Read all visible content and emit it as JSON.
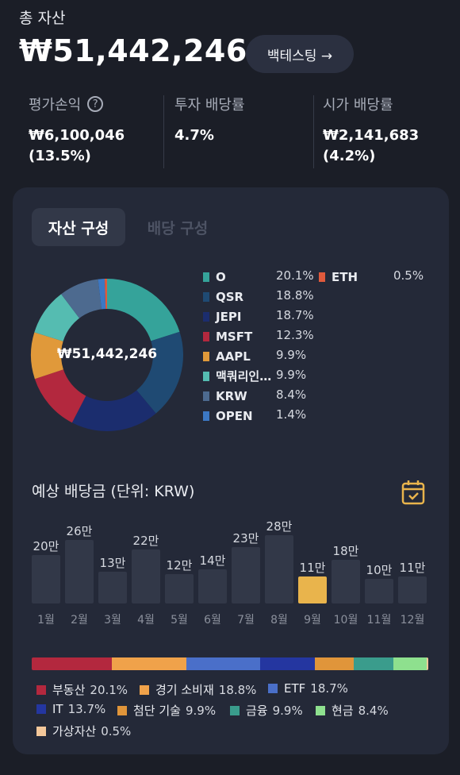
{
  "header": {
    "total_label": "총 자산",
    "total_value": "₩51,442,246",
    "backtest_label": "백테스팅 →"
  },
  "stats": [
    {
      "label": "평가손익",
      "value_line1": "₩6,100,046",
      "value_line2": "(13.5%)",
      "help_icon": "question-circle-icon"
    },
    {
      "label": "투자 배당률",
      "value_line1": "4.7%",
      "value_line2": ""
    },
    {
      "label": "시가 배당률",
      "value_line1": "₩2,141,683 (4.2%)",
      "value_line2": ""
    }
  ],
  "tabs": [
    {
      "label": "자산 구성",
      "active": true
    },
    {
      "label": "배당 구성",
      "active": false
    }
  ],
  "donut": {
    "center_label": "₩51,442,246"
  },
  "chart_data": [
    {
      "type": "pie",
      "categories": [
        "O",
        "QSR",
        "JEPI",
        "MSFT",
        "AAPL",
        "맥쿼리인…",
        "KRW",
        "OPEN",
        "ETH"
      ],
      "values": [
        20.1,
        18.8,
        18.7,
        12.3,
        9.9,
        9.9,
        8.4,
        1.4,
        0.5
      ],
      "labels": [
        "20.1%",
        "18.8%",
        "18.7%",
        "12.3%",
        "9.9%",
        "9.9%",
        "8.4%",
        "1.4%",
        "0.5%"
      ],
      "colors": [
        "#35a39a",
        "#1f4a73",
        "#1b2d6e",
        "#b3283e",
        "#e0993a",
        "#55bcb1",
        "#4d6a8f",
        "#3c78c4",
        "#e05a3c"
      ]
    },
    {
      "type": "bar",
      "title": "예상 배당금 (단위: KRW)",
      "categories": [
        "1월",
        "2월",
        "3월",
        "4월",
        "5월",
        "6월",
        "7월",
        "8월",
        "9월",
        "10월",
        "11월",
        "12월"
      ],
      "values": [
        200000,
        260000,
        130000,
        220000,
        120000,
        140000,
        230000,
        280000,
        110000,
        180000,
        100000,
        110000
      ],
      "labels": [
        "20만",
        "26만",
        "13만",
        "22만",
        "12만",
        "14만",
        "23만",
        "28만",
        "11만",
        "18만",
        "10만",
        "11만"
      ],
      "highlight_index": 8,
      "bar_color": "#323848",
      "highlight_color": "#e9b44c"
    },
    {
      "type": "bar",
      "categories": [
        "부동산",
        "경기 소비재",
        "ETF",
        "IT",
        "첨단 기술",
        "금융",
        "현금",
        "가상자산"
      ],
      "values": [
        20.1,
        18.8,
        18.7,
        13.7,
        9.9,
        9.9,
        8.4,
        0.5
      ],
      "labels": [
        "20.1%",
        "18.8%",
        "18.7%",
        "13.7%",
        "9.9%",
        "9.9%",
        "8.4%",
        "0.5%"
      ],
      "colors": [
        "#b3283e",
        "#f0a24a",
        "#4a6fc9",
        "#2436a0",
        "#e0953a",
        "#3a9c8c",
        "#8ee08e",
        "#f3c79a"
      ]
    }
  ],
  "icons": {
    "calendar": "calendar-check-icon"
  }
}
